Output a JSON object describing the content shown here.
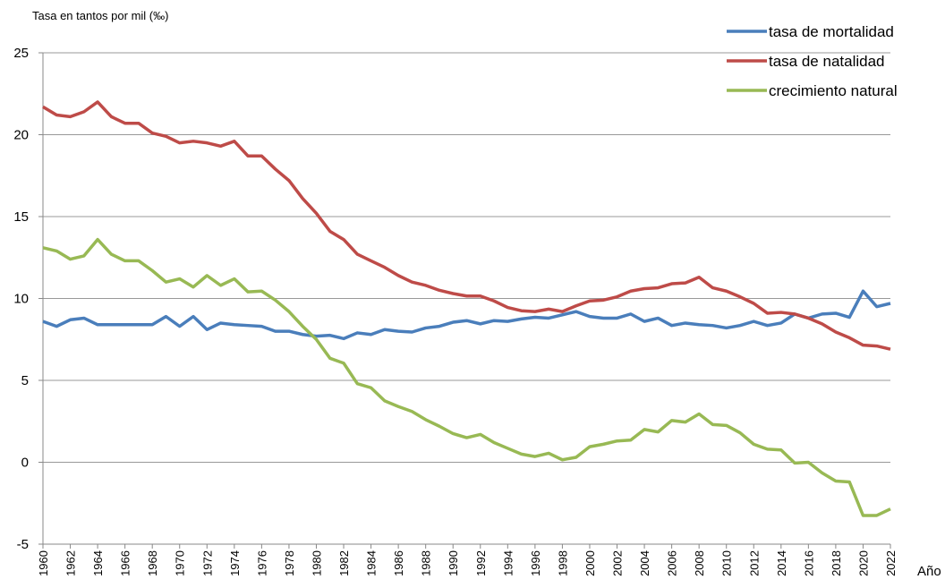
{
  "chart_data": {
    "type": "line",
    "y_label": "Tasa en tantos por mil  (‰)",
    "x_label": "Año",
    "x": [
      1960,
      1961,
      1962,
      1963,
      1964,
      1965,
      1966,
      1967,
      1968,
      1969,
      1970,
      1971,
      1972,
      1973,
      1974,
      1975,
      1976,
      1977,
      1978,
      1979,
      1980,
      1981,
      1982,
      1983,
      1984,
      1985,
      1986,
      1987,
      1988,
      1989,
      1990,
      1991,
      1992,
      1993,
      1994,
      1995,
      1996,
      1997,
      1998,
      1999,
      2000,
      2001,
      2002,
      2003,
      2004,
      2005,
      2006,
      2007,
      2008,
      2009,
      2010,
      2011,
      2012,
      2013,
      2014,
      2015,
      2016,
      2017,
      2018,
      2019,
      2020,
      2021,
      2022
    ],
    "series": [
      {
        "name": "tasa de mortalidad",
        "color": "#4a7ebb",
        "values": [
          8.6,
          8.3,
          8.7,
          8.8,
          8.4,
          8.4,
          8.4,
          8.4,
          8.4,
          8.9,
          8.3,
          8.9,
          8.1,
          8.5,
          8.4,
          8.35,
          8.3,
          8.0,
          8.0,
          7.8,
          7.7,
          7.75,
          7.55,
          7.9,
          7.8,
          8.1,
          8.0,
          7.95,
          8.2,
          8.3,
          8.55,
          8.65,
          8.45,
          8.65,
          8.6,
          8.75,
          8.85,
          8.8,
          9.0,
          9.2,
          8.9,
          8.8,
          8.8,
          9.05,
          8.6,
          8.8,
          8.35,
          8.5,
          8.4,
          8.35,
          8.2,
          8.35,
          8.6,
          8.35,
          8.5,
          9.05,
          8.8,
          9.05,
          9.1,
          8.85,
          10.45,
          9.5,
          9.7
        ]
      },
      {
        "name": "tasa de natalidad",
        "color": "#be4b48",
        "values": [
          21.7,
          21.2,
          21.1,
          21.4,
          22.0,
          21.1,
          20.7,
          20.7,
          20.1,
          19.9,
          19.5,
          19.6,
          19.5,
          19.3,
          19.6,
          18.7,
          18.7,
          17.9,
          17.2,
          16.1,
          15.2,
          14.1,
          13.6,
          12.7,
          12.3,
          11.9,
          11.4,
          11.0,
          10.8,
          10.5,
          10.3,
          10.15,
          10.15,
          9.85,
          9.45,
          9.25,
          9.2,
          9.35,
          9.2,
          9.55,
          9.85,
          9.9,
          10.1,
          10.45,
          10.6,
          10.65,
          10.9,
          10.95,
          11.3,
          10.65,
          10.45,
          10.1,
          9.7,
          9.1,
          9.15,
          9.05,
          8.8,
          8.45,
          7.95,
          7.6,
          7.15,
          7.1,
          6.9
        ]
      },
      {
        "name": "crecimiento natural",
        "color": "#98b954",
        "values": [
          13.1,
          12.9,
          12.4,
          12.6,
          13.6,
          12.7,
          12.3,
          12.3,
          11.7,
          11.0,
          11.2,
          10.7,
          11.4,
          10.8,
          11.2,
          10.4,
          10.45,
          9.9,
          9.2,
          8.3,
          7.5,
          6.35,
          6.05,
          4.8,
          4.55,
          3.75,
          3.4,
          3.1,
          2.6,
          2.2,
          1.75,
          1.5,
          1.7,
          1.2,
          0.85,
          0.5,
          0.35,
          0.55,
          0.15,
          0.3,
          0.95,
          1.1,
          1.3,
          1.35,
          2.0,
          1.85,
          2.55,
          2.45,
          2.95,
          2.3,
          2.25,
          1.8,
          1.1,
          0.8,
          0.75,
          -0.05,
          0.0,
          -0.65,
          -1.15,
          -1.2,
          -3.25,
          -3.25,
          -2.85
        ]
      }
    ],
    "xlim": [
      1960,
      2022
    ],
    "xticks": [
      1960,
      1962,
      1964,
      1966,
      1968,
      1970,
      1972,
      1974,
      1976,
      1978,
      1980,
      1982,
      1984,
      1986,
      1988,
      1990,
      1992,
      1994,
      1996,
      1998,
      2000,
      2002,
      2004,
      2006,
      2008,
      2010,
      2012,
      2014,
      2016,
      2018,
      2020,
      2022
    ],
    "ylim": [
      -5,
      25
    ],
    "yticks": [
      -5,
      0,
      5,
      10,
      15,
      20,
      25
    ],
    "grid": true,
    "legend": "top-right"
  }
}
